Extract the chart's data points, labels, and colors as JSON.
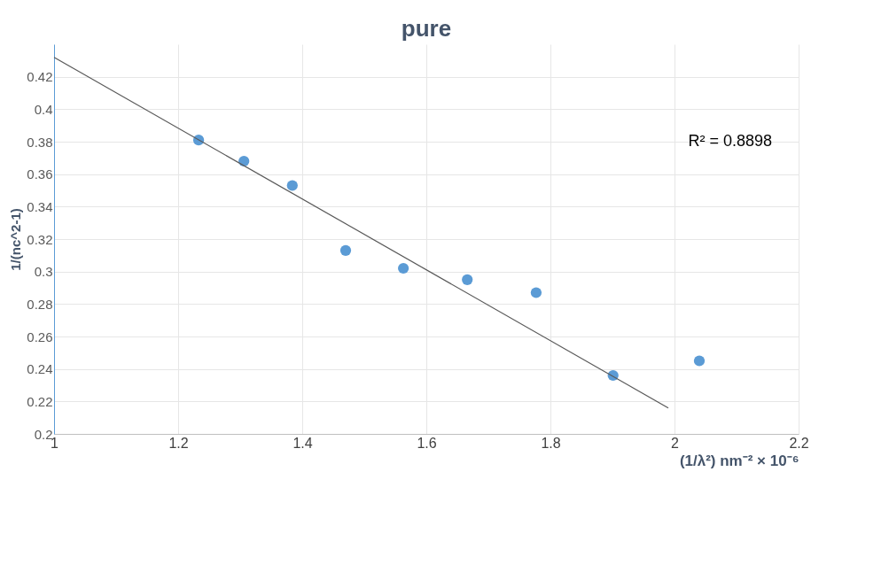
{
  "chart_data": {
    "type": "scatter",
    "title": "pure",
    "xlabel": "(1/λ²) nm⁻² × 10⁻⁶",
    "ylabel": "1/(nc^2-1)",
    "x": [
      1.233,
      1.306,
      1.384,
      1.47,
      1.563,
      1.666,
      1.777,
      1.901,
      2.04
    ],
    "series": [
      {
        "color": "#5b9bd5",
        "values": [
          0.381,
          0.368,
          0.353,
          0.313,
          0.302,
          0.295,
          0.287,
          0.236,
          0.245
        ],
        "marker": "circle"
      },
      {
        "type": "line",
        "color": "#595959",
        "x": [
          1.0,
          1.99
        ],
        "values": [
          0.432,
          0.216
        ]
      }
    ],
    "annotations": [
      "R² = 0.8898"
    ],
    "xlim": [
      1,
      2.2
    ],
    "xticks": [
      1,
      1.2,
      1.4,
      1.6,
      1.8,
      2,
      2.2
    ],
    "ylim": [
      0.2,
      0.44
    ],
    "yticks": [
      0.2,
      0.22,
      0.24,
      0.26,
      0.28,
      0.3,
      0.32,
      0.34,
      0.36,
      0.38,
      0.4,
      0.42
    ],
    "grid": true,
    "legend": false
  }
}
